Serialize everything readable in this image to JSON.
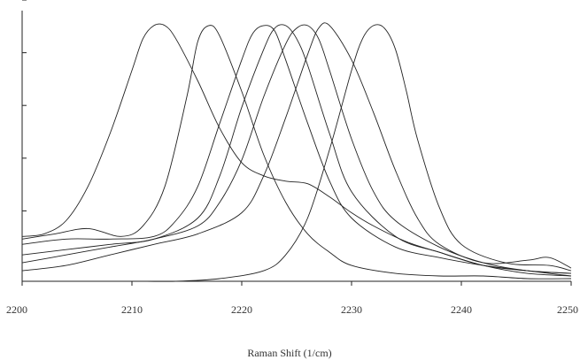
{
  "chart_data": {
    "type": "line",
    "title": "",
    "xlabel": "Raman Shift (1/cm)",
    "ylabel": "",
    "xlim": [
      2200,
      2250
    ],
    "ylim": [
      0,
      1.0
    ],
    "grid": false,
    "legend": "none",
    "x_ticks": [
      2200,
      2210,
      2220,
      2230,
      2240,
      2250
    ],
    "y_ticks": [
      0.2,
      0.4,
      0.6,
      0.8,
      1.0
    ],
    "line_color": "#222222",
    "series": [
      {
        "x": [
          2200,
          2202,
          2204,
          2206,
          2208,
          2210,
          2211,
          2212,
          2213,
          2214,
          2216,
          2218,
          2220,
          2222,
          2224,
          2226,
          2228,
          2230,
          2232,
          2235,
          2238,
          2242,
          2246,
          2250
        ],
        "y": [
          0.17,
          0.18,
          0.23,
          0.36,
          0.56,
          0.8,
          0.92,
          0.97,
          0.97,
          0.92,
          0.76,
          0.58,
          0.45,
          0.4,
          0.38,
          0.37,
          0.32,
          0.26,
          0.21,
          0.15,
          0.11,
          0.06,
          0.03,
          0.02
        ]
      },
      {
        "x": [
          2200,
          2203,
          2206,
          2209,
          2211,
          2213,
          2215,
          2216,
          2217,
          2218,
          2220,
          2222,
          2224,
          2226,
          2228,
          2230,
          2234,
          2238,
          2242,
          2246,
          2250
        ],
        "y": [
          0.16,
          0.18,
          0.2,
          0.17,
          0.21,
          0.36,
          0.7,
          0.91,
          0.97,
          0.93,
          0.72,
          0.48,
          0.3,
          0.18,
          0.11,
          0.06,
          0.03,
          0.02,
          0.02,
          0.01,
          0.01
        ]
      },
      {
        "x": [
          2200,
          2204,
          2208,
          2212,
          2214,
          2216,
          2218,
          2220,
          2221,
          2222,
          2223,
          2224,
          2226,
          2228,
          2230,
          2234,
          2238,
          2242,
          2246,
          2250
        ],
        "y": [
          0.14,
          0.16,
          0.16,
          0.17,
          0.23,
          0.36,
          0.6,
          0.84,
          0.94,
          0.97,
          0.95,
          0.84,
          0.6,
          0.38,
          0.24,
          0.13,
          0.09,
          0.06,
          0.04,
          0.02
        ]
      },
      {
        "x": [
          2200,
          2204,
          2208,
          2212,
          2216,
          2218,
          2220,
          2222,
          2223,
          2224,
          2225,
          2226,
          2228,
          2230,
          2234,
          2238,
          2242,
          2246,
          2250
        ],
        "y": [
          0.1,
          0.12,
          0.14,
          0.16,
          0.24,
          0.4,
          0.66,
          0.88,
          0.96,
          0.97,
          0.92,
          0.82,
          0.56,
          0.34,
          0.17,
          0.11,
          0.06,
          0.04,
          0.03
        ]
      },
      {
        "x": [
          2200,
          2204,
          2208,
          2212,
          2216,
          2218,
          2220,
          2222,
          2224,
          2225,
          2226,
          2227,
          2228,
          2230,
          2232,
          2234,
          2238,
          2242,
          2246,
          2250
        ],
        "y": [
          0.07,
          0.1,
          0.13,
          0.16,
          0.21,
          0.3,
          0.46,
          0.7,
          0.9,
          0.96,
          0.97,
          0.92,
          0.8,
          0.54,
          0.34,
          0.23,
          0.13,
          0.07,
          0.04,
          0.03
        ]
      },
      {
        "x": [
          2200,
          2204,
          2208,
          2212,
          2216,
          2220,
          2222,
          2224,
          2226,
          2227,
          2228,
          2230,
          2232,
          2234,
          2236,
          2238,
          2242,
          2246,
          2248,
          2250
        ],
        "y": [
          0.04,
          0.06,
          0.1,
          0.14,
          0.18,
          0.26,
          0.4,
          0.62,
          0.86,
          0.96,
          0.97,
          0.84,
          0.64,
          0.42,
          0.24,
          0.14,
          0.07,
          0.08,
          0.09,
          0.05
        ]
      },
      {
        "x": [
          2200,
          2206,
          2210,
          2214,
          2218,
          2222,
          2224,
          2226,
          2228,
          2230,
          2231,
          2232,
          2233,
          2234,
          2235,
          2236,
          2238,
          2240,
          2244,
          2248,
          2250
        ],
        "y": [
          0.0,
          0.0,
          0.0,
          0.0,
          0.01,
          0.04,
          0.1,
          0.24,
          0.5,
          0.8,
          0.92,
          0.97,
          0.96,
          0.88,
          0.72,
          0.54,
          0.28,
          0.14,
          0.07,
          0.06,
          0.04
        ]
      }
    ]
  }
}
